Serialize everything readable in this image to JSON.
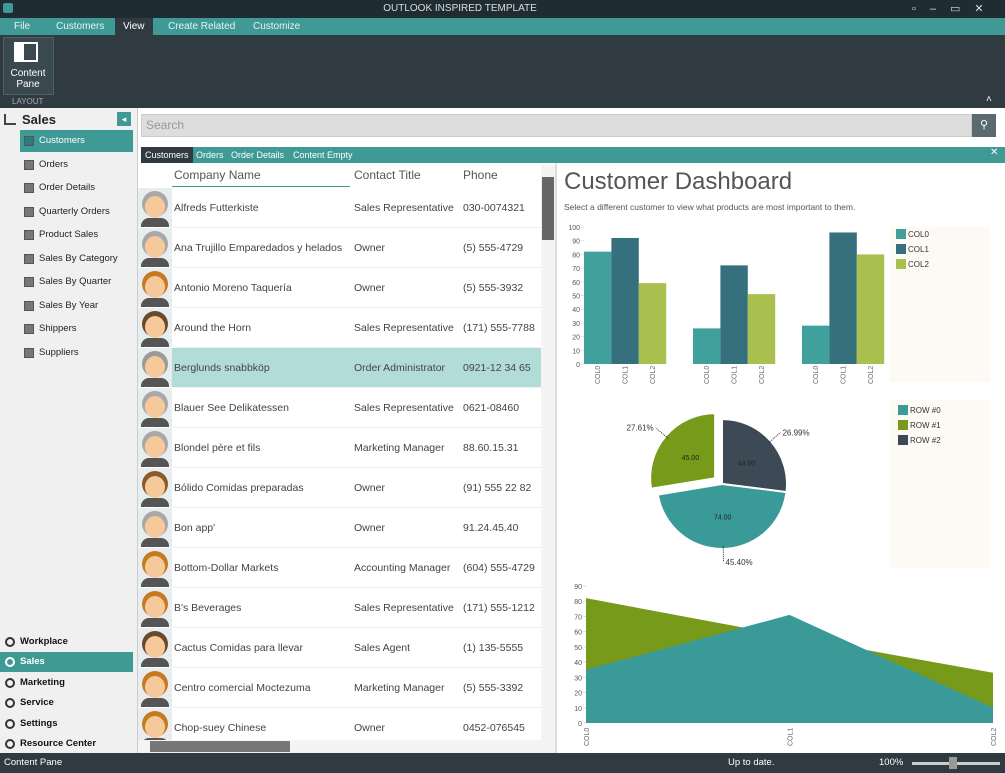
{
  "window": {
    "title": "OUTLOOK INSPIRED TEMPLATE"
  },
  "menu": [
    "File",
    "Customers",
    "View",
    "Create Related",
    "Customize"
  ],
  "ribbon": {
    "button": "Content Pane",
    "group": "LAYOUT"
  },
  "nav": {
    "title": "Sales",
    "items": [
      "Customers",
      "Orders",
      "Order Details",
      "Quarterly Orders",
      "Product Sales",
      "Sales By Category",
      "Sales By Quarter",
      "Sales By Year",
      "Shippers",
      "Suppliers"
    ],
    "modules": [
      "Workplace",
      "Sales",
      "Marketing",
      "Service",
      "Settings",
      "Resource Center"
    ]
  },
  "search": {
    "placeholder": "Search"
  },
  "tabs": [
    "Customers",
    "Orders",
    "Order Details",
    "Content Empty"
  ],
  "table": {
    "columns": [
      "Company Name",
      "Contact Title",
      "Phone"
    ],
    "selected_row": 4,
    "rows": [
      [
        "Alfreds Futterkiste",
        "Sales Representative",
        "030-0074321"
      ],
      [
        "Ana Trujillo Emparedados y helados",
        "Owner",
        "(5) 555-4729"
      ],
      [
        "Antonio Moreno Taquería",
        "Owner",
        "(5) 555-3932"
      ],
      [
        "Around the Horn",
        "Sales Representative",
        "(171) 555-7788"
      ],
      [
        "Berglunds snabbköp",
        "Order Administrator",
        "0921-12 34 65"
      ],
      [
        "Blauer See Delikatessen",
        "Sales Representative",
        "0621-08460"
      ],
      [
        "Blondel père et fils",
        "Marketing Manager",
        "88.60.15.31"
      ],
      [
        "Bólido Comidas preparadas",
        "Owner",
        "(91) 555 22 82"
      ],
      [
        "Bon app'",
        "Owner",
        "91.24.45.40"
      ],
      [
        "Bottom-Dollar Markets",
        "Accounting Manager",
        "(604) 555-4729"
      ],
      [
        "B's Beverages",
        "Sales Representative",
        "(171) 555-1212"
      ],
      [
        "Cactus Comidas para llevar",
        "Sales Agent",
        "(1) 135-5555"
      ],
      [
        "Centro comercial Moctezuma",
        "Marketing Manager",
        "(5) 555-3392"
      ],
      [
        "Chop-suey Chinese",
        "Owner",
        "0452-076545"
      ]
    ]
  },
  "dashboard": {
    "title": "Customer Dashboard",
    "subtitle": "Select a different customer to view what products are most important to them."
  },
  "chart_data": [
    {
      "type": "bar",
      "categories": [
        null,
        null,
        null
      ],
      "series": [
        {
          "name": "COL0",
          "color": "#40a09b",
          "values": [
            82,
            26,
            28
          ]
        },
        {
          "name": "COL1",
          "color": "#36707c",
          "values": [
            92,
            72,
            96
          ]
        },
        {
          "name": "COL2",
          "color": "#a9c04f",
          "values": [
            59,
            51,
            80
          ]
        }
      ],
      "ylim": [
        0,
        100
      ],
      "yticks": [
        0,
        10,
        20,
        30,
        40,
        50,
        60,
        70,
        80,
        90,
        100
      ]
    },
    {
      "type": "pie",
      "categories": [
        "ROW #0",
        "ROW #1",
        "ROW #2"
      ],
      "values": [
        74,
        45,
        44
      ],
      "value_labels": [
        "74.00",
        "45.00",
        "44.00"
      ],
      "percent_labels": [
        "45.40%",
        "27.61%",
        "26.99%"
      ],
      "colors": [
        "#3a9a98",
        "#789a1a",
        "#3d4a55"
      ],
      "exploded": 1
    },
    {
      "type": "area",
      "categories": [
        "COL0",
        "COL1",
        "COL2"
      ],
      "series": [
        {
          "color": "#789a1a",
          "values": [
            82,
            57,
            33
          ]
        },
        {
          "color": "#3a9a98",
          "values": [
            35,
            71,
            10
          ]
        }
      ],
      "ylim": [
        0,
        90
      ],
      "yticks": [
        0,
        10,
        20,
        30,
        40,
        50,
        60,
        70,
        80,
        90
      ]
    }
  ],
  "status": {
    "left": "Content Pane",
    "center": "Up to date.",
    "zoom": "100%"
  }
}
